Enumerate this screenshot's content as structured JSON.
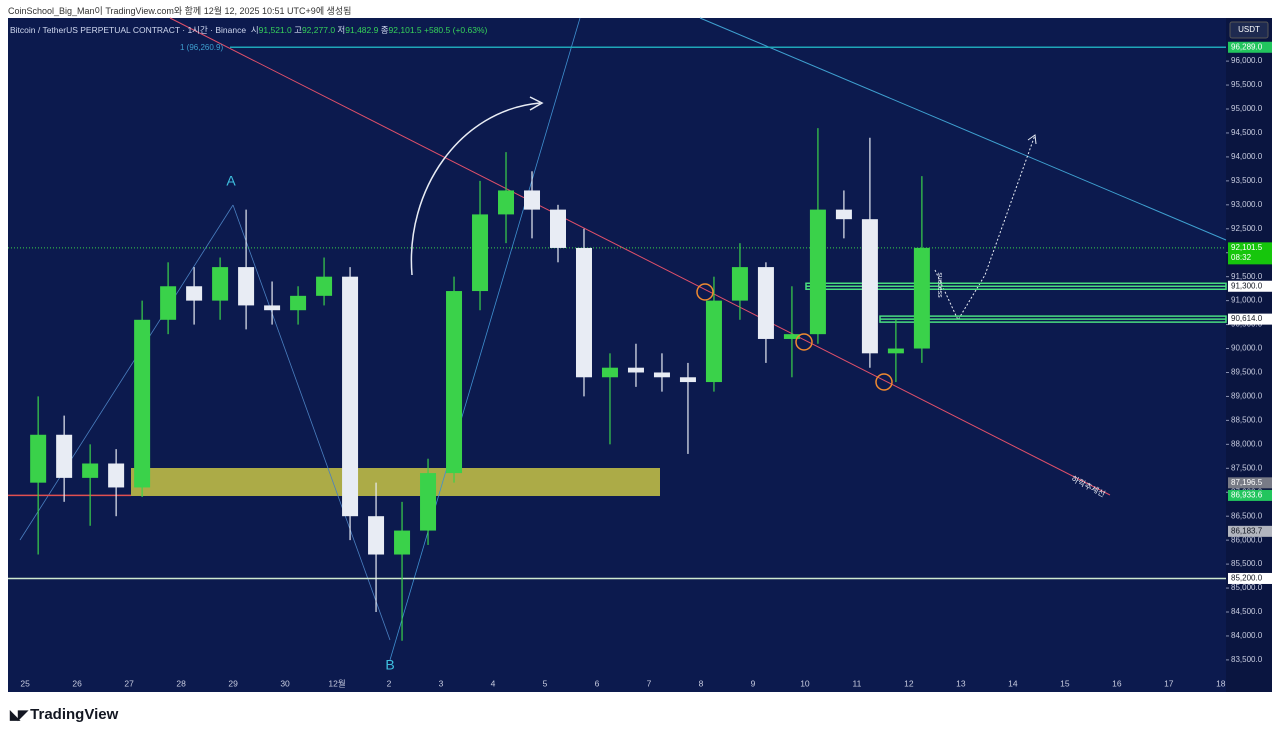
{
  "page": {
    "watermark": "CoinSchool_Big_Man이 TradingView.com와 함께 12월 12, 2025 10:51 UTC+9에 생성됨",
    "logo": "TradingView",
    "currency": "USDT"
  },
  "chart_data": {
    "type": "candlestick",
    "title": "Bitcoin / TetherUS PERPETUAL CONTRACT · 1시간 · Binance",
    "ohlc": [
      {
        "label": "시",
        "value": "91,521.0"
      },
      {
        "label": "고",
        "value": "92,277.0"
      },
      {
        "label": "저",
        "value": "91,482.9"
      },
      {
        "label": "종",
        "value": "92,101.5"
      }
    ],
    "change": "+580.5 (+0.63%)",
    "annotations": {
      "a": "A",
      "b": "B",
      "fib": "1 (96,260.9)",
      "success": "success",
      "trend": "하락추세선"
    },
    "up_color": "#3ad24a",
    "down_color": "#e8ecf4",
    "xlim": [
      -0.33,
      23.1
    ],
    "ylim": [
      82830,
      96900
    ],
    "xticks": [
      {
        "value": 0,
        "label": "25"
      },
      {
        "value": 1,
        "label": "26"
      },
      {
        "value": 2,
        "label": "27"
      },
      {
        "value": 3,
        "label": "28"
      },
      {
        "value": 4,
        "label": "29"
      },
      {
        "value": 5,
        "label": "30"
      },
      {
        "value": 6,
        "label": "12월"
      },
      {
        "value": 7,
        "label": "2"
      },
      {
        "value": 8,
        "label": "3"
      },
      {
        "value": 9,
        "label": "4"
      },
      {
        "value": 10,
        "label": "5"
      },
      {
        "value": 11,
        "label": "6"
      },
      {
        "value": 12,
        "label": "7"
      },
      {
        "value": 13,
        "label": "8"
      },
      {
        "value": 14,
        "label": "9"
      },
      {
        "value": 15,
        "label": "10"
      },
      {
        "value": 16,
        "label": "11"
      },
      {
        "value": 17,
        "label": "12"
      },
      {
        "value": 18,
        "label": "13"
      },
      {
        "value": 19,
        "label": "14"
      },
      {
        "value": 20,
        "label": "15"
      },
      {
        "value": 21,
        "label": "16"
      },
      {
        "value": 22,
        "label": "17"
      },
      {
        "value": 23,
        "label": "18"
      }
    ],
    "yticks": [
      {
        "value": 96000,
        "label": "96,000.0"
      },
      {
        "value": 95500,
        "label": "95,500.0"
      },
      {
        "value": 95000,
        "label": "95,000.0"
      },
      {
        "value": 94500,
        "label": "94,500.0"
      },
      {
        "value": 94000,
        "label": "94,000.0"
      },
      {
        "value": 93500,
        "label": "93,500.0"
      },
      {
        "value": 93000,
        "label": "93,000.0"
      },
      {
        "value": 92500,
        "label": "92,500.0"
      },
      {
        "value": 92000,
        "label": "92,000.0"
      },
      {
        "value": 91500,
        "label": "91,500.0"
      },
      {
        "value": 91000,
        "label": "91,000.0"
      },
      {
        "value": 90500,
        "label": "90,500.0"
      },
      {
        "value": 90000,
        "label": "90,000.0"
      },
      {
        "value": 89500,
        "label": "89,500.0"
      },
      {
        "value": 89000,
        "label": "89,000.0"
      },
      {
        "value": 88500,
        "label": "88,500.0"
      },
      {
        "value": 88000,
        "label": "88,000.0"
      },
      {
        "value": 87500,
        "label": "87,500.0"
      },
      {
        "value": 87000,
        "label": "87,000.0"
      },
      {
        "value": 86500,
        "label": "86,500.0"
      },
      {
        "value": 86000,
        "label": "86,000.0"
      },
      {
        "value": 85500,
        "label": "85,500.0"
      },
      {
        "value": 85000,
        "label": "85,000.0"
      },
      {
        "value": 84500,
        "label": "84,500.0"
      },
      {
        "value": 84000,
        "label": "84,000.0"
      },
      {
        "value": 83500,
        "label": "83,500.0"
      }
    ],
    "x": [
      0.25,
      0.75,
      1.25,
      1.75,
      2.25,
      2.75,
      3.25,
      3.75,
      4.25,
      4.75,
      5.25,
      5.75,
      6.25,
      6.75,
      7.25,
      7.75,
      8.25,
      8.75,
      9.25,
      9.75,
      10.25,
      10.75,
      11.25,
      11.75,
      12.25,
      12.75,
      13.25,
      13.75,
      14.25,
      14.75,
      15.25,
      15.75,
      16.25,
      16.75,
      17.25
    ],
    "open": [
      87200,
      88200,
      87300,
      87600,
      87100,
      90600,
      91300,
      91000,
      91700,
      90900,
      90800,
      91100,
      91500,
      86500,
      85700,
      86200,
      87400,
      91200,
      92800,
      93300,
      92900,
      92100,
      89400,
      89600,
      89500,
      89400,
      89300,
      91000,
      91700,
      90200,
      90300,
      92900,
      92700,
      89900,
      90000
    ],
    "high": [
      89000,
      88600,
      88000,
      87900,
      91000,
      91800,
      91700,
      91900,
      92900,
      91400,
      91300,
      91900,
      91700,
      87200,
      86800,
      87700,
      91500,
      93500,
      94100,
      93700,
      93000,
      92500,
      89900,
      90100,
      89900,
      89700,
      91500,
      92200,
      91800,
      91300,
      94600,
      93300,
      94400,
      90600,
      93600
    ],
    "low": [
      85700,
      86800,
      86300,
      86500,
      86900,
      90300,
      90500,
      90600,
      90400,
      90500,
      90500,
      90900,
      86000,
      84500,
      83900,
      85900,
      87200,
      90800,
      92200,
      92300,
      91800,
      89000,
      88000,
      89200,
      89100,
      87800,
      89100,
      90600,
      89700,
      89400,
      90100,
      92300,
      89600,
      89300,
      89700
    ],
    "close": [
      88200,
      87300,
      87600,
      87100,
      90600,
      91300,
      91000,
      91700,
      90900,
      90800,
      91100,
      91500,
      86500,
      85700,
      86200,
      87400,
      91200,
      92800,
      93300,
      92900,
      92100,
      89400,
      89600,
      89500,
      89400,
      89300,
      91000,
      91700,
      90200,
      90300,
      92900,
      92700,
      89900,
      90000,
      92101.5
    ],
    "markers": [
      {
        "value": 96289,
        "label": "96,289.0",
        "bg": "#22c55e",
        "fg": "#ffffff",
        "line": "#1fa6b8"
      },
      {
        "value": 92101.5,
        "label": "92,101.5",
        "sublabel": "08:32",
        "bg": "#16c60c",
        "fg": "#ffffff",
        "line": "#3ad24a",
        "dotted": true
      },
      {
        "value": 91300,
        "label": "91,300.0",
        "bg": "#ffffff",
        "fg": "#131722",
        "line": "#4ade80"
      },
      {
        "value": 90614,
        "label": "90,614.0",
        "bg": "#ffffff",
        "fg": "#131722",
        "line": "#4ade80"
      },
      {
        "value": 87196.5,
        "label": "87,196.5",
        "bg": "#787b86",
        "fg": "#ffffff"
      },
      {
        "value": 86933.6,
        "label": "86,933.6",
        "bg": "#22c55e",
        "fg": "#ffffff",
        "line": "#e05050"
      },
      {
        "value": 86183.7,
        "label": "86,183.7",
        "bg": "#b2b5be",
        "fg": "#131722"
      },
      {
        "value": 85200,
        "label": "85,200.0",
        "bg": "#ffffff",
        "fg": "#131722",
        "line": "#cfe8cf"
      }
    ]
  }
}
